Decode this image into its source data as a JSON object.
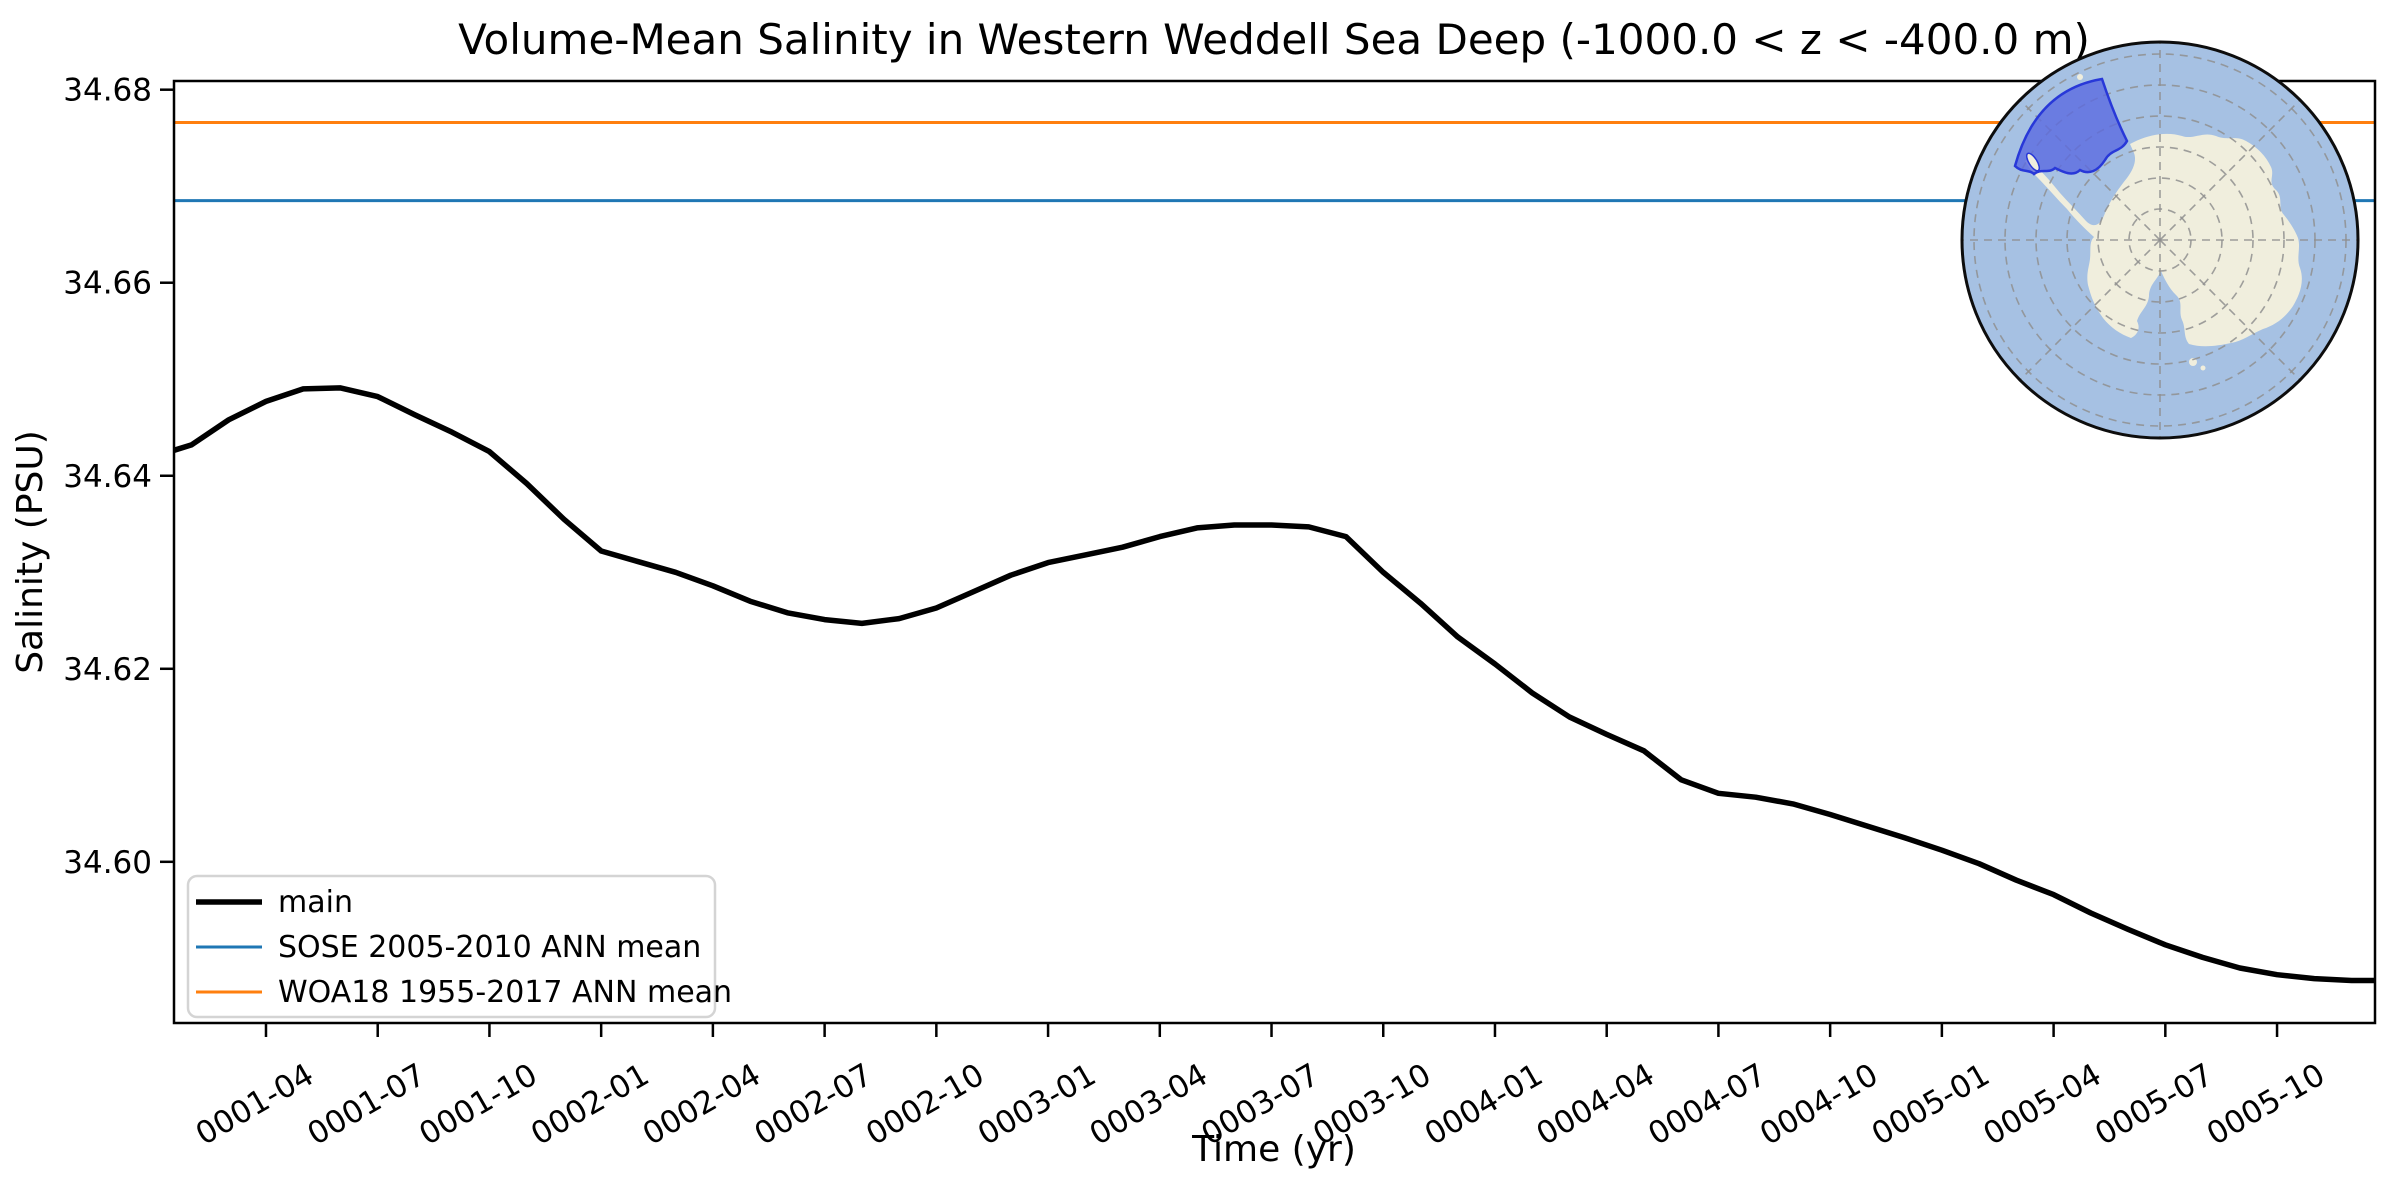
{
  "title": "Volume-Mean Salinity in Western Weddell Sea Deep (-1000.0 < z < -400.0 m)",
  "xlabel": "Time (yr)",
  "ylabel": "Salinity (PSU)",
  "legend": [
    {
      "label": "main",
      "color": "#000000",
      "linewidth": 5.5
    },
    {
      "label": "SOSE 2005-2010 ANN mean",
      "color": "#1f77b4",
      "linewidth": 3
    },
    {
      "label": "WOA18 1955-2017 ANN mean",
      "color": "#ff7f0e",
      "linewidth": 3
    }
  ],
  "chart_data": {
    "type": "line",
    "title": "Volume-Mean Salinity in Western Weddell Sea Deep (-1000.0 < z < -400.0 m)",
    "xlabel": "Time (yr)",
    "ylabel": "Salinity (PSU)",
    "x": [
      "0001-01",
      "0001-02",
      "0001-03",
      "0001-04",
      "0001-05",
      "0001-06",
      "0001-07",
      "0001-08",
      "0001-09",
      "0001-10",
      "0001-11",
      "0001-12",
      "0002-01",
      "0002-02",
      "0002-03",
      "0002-04",
      "0002-05",
      "0002-06",
      "0002-07",
      "0002-08",
      "0002-09",
      "0002-10",
      "0002-11",
      "0002-12",
      "0003-01",
      "0003-02",
      "0003-03",
      "0003-04",
      "0003-05",
      "0003-06",
      "0003-07",
      "0003-08",
      "0003-09",
      "0003-10",
      "0003-11",
      "0003-12",
      "0004-01",
      "0004-02",
      "0004-03",
      "0004-04",
      "0004-05",
      "0004-06",
      "0004-07",
      "0004-08",
      "0004-09",
      "0004-10",
      "0004-11",
      "0004-12",
      "0005-01",
      "0005-02",
      "0005-03",
      "0005-04",
      "0005-05",
      "0005-06",
      "0005-07",
      "0005-08",
      "0005-09",
      "0005-10",
      "0005-11",
      "0005-12"
    ],
    "series": [
      {
        "name": "main",
        "values": [
          34.642,
          34.6432,
          34.6458,
          34.6477,
          34.649,
          34.6491,
          34.6482,
          34.6463,
          34.6445,
          34.6425,
          34.6392,
          34.6355,
          34.6322,
          34.6311,
          34.63,
          34.6286,
          34.627,
          34.6258,
          34.6251,
          34.6247,
          34.6252,
          34.6263,
          34.628,
          34.6297,
          34.631,
          34.6318,
          34.6326,
          34.6337,
          34.6346,
          34.6349,
          34.6349,
          34.6347,
          34.6337,
          34.63,
          34.6268,
          34.6233,
          34.6205,
          34.6175,
          34.615,
          34.6132,
          34.6115,
          34.6085,
          34.6071,
          34.6067,
          34.606,
          34.6049,
          34.6037,
          34.6025,
          34.6012,
          34.5998,
          34.5981,
          34.5966,
          34.5947,
          34.593,
          34.5914,
          34.5901,
          34.589,
          34.5883,
          34.5879,
          34.5877
        ]
      },
      {
        "name": "SOSE 2005-2010 ANN mean",
        "constant": 34.6685
      },
      {
        "name": "WOA18 1955-2017 ANN mean",
        "constant": 34.6766
      }
    ],
    "ylim": [
      34.5833,
      34.6809
    ],
    "xlim_month_index": [
      0.53,
      59.63
    ],
    "extend_main_to_right_edge": true,
    "grid": false,
    "legend_position": "lower left",
    "ytick_labels": [
      "34.68",
      "34.66",
      "34.64",
      "34.62",
      "34.60"
    ],
    "ytick_values": [
      34.68,
      34.66,
      34.64,
      34.62,
      34.6
    ],
    "xtick_labels": [
      "0001-04",
      "0001-07",
      "0001-10",
      "0002-01",
      "0002-04",
      "0002-07",
      "0002-10",
      "0003-01",
      "0003-04",
      "0003-07",
      "0003-10",
      "0004-01",
      "0004-04",
      "0004-07",
      "0004-10",
      "0005-01",
      "0005-04",
      "0005-07",
      "0005-10"
    ],
    "xtick_month_indices": [
      3,
      6,
      9,
      12,
      15,
      18,
      21,
      24,
      27,
      30,
      33,
      36,
      39,
      42,
      45,
      48,
      51,
      54,
      57
    ]
  },
  "inset_map": {
    "description_name": "antarctica-polar-inset-map",
    "colors": {
      "ocean": "#a6c1e3",
      "land": "#f0eedd",
      "highlight_fill": "#5b6ae0",
      "highlight_edge": "#2838d8",
      "graticule": "#8f8f8f",
      "rim": "#0d0d0d"
    }
  }
}
